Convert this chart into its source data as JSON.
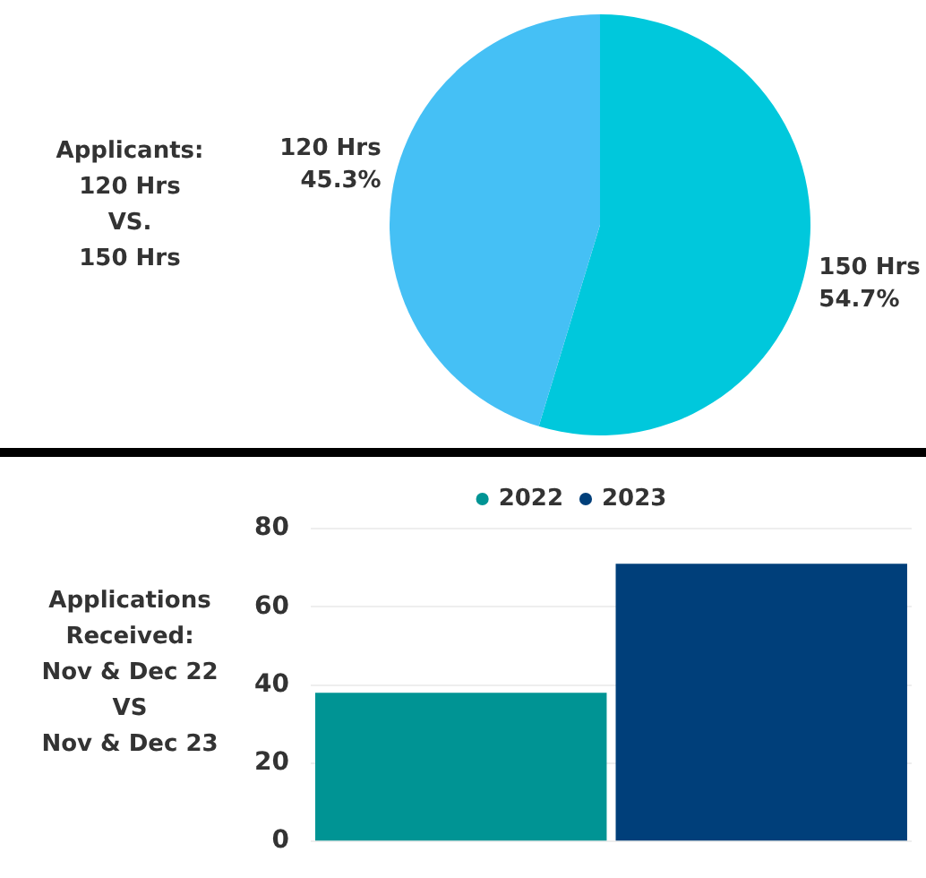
{
  "chart_data": [
    {
      "type": "pie",
      "title": "Applicants:\n120 Hrs\nVS.\n150 Hrs",
      "categories": [
        "150 Hrs",
        "120 Hrs"
      ],
      "values": [
        54.7,
        45.3
      ],
      "colors": [
        "#00c8dc",
        "#45c0f5"
      ],
      "value_labels": [
        "54.7%",
        "45.3%"
      ]
    },
    {
      "type": "bar",
      "ylabel": "Applications\nReceived:\nNov & Dec 22\nVS\nNov & Dec 23",
      "categories": [
        null
      ],
      "series": [
        {
          "name": "2022",
          "color": "#009494",
          "values": [
            38
          ]
        },
        {
          "name": "2023",
          "color": "#003f7a",
          "values": [
            71
          ]
        }
      ],
      "ylim": [
        0,
        80
      ],
      "yticks": [
        0,
        20,
        40,
        60,
        80
      ],
      "grid": "y",
      "legend": "top"
    }
  ]
}
